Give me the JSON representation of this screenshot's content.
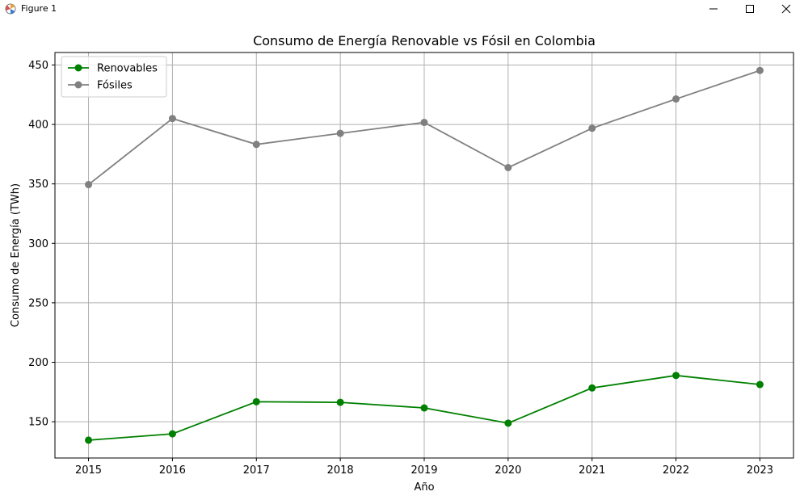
{
  "window": {
    "title": "Figure 1"
  },
  "chart_data": {
    "type": "line",
    "title": "Consumo de Energía Renovable vs Fósil en Colombia",
    "xlabel": "Año",
    "ylabel": "Consumo de Energía (TWh)",
    "x": [
      2015,
      2016,
      2017,
      2018,
      2019,
      2020,
      2021,
      2022,
      2023
    ],
    "xlim": [
      2014.6,
      2023.4
    ],
    "ylim": [
      119.5,
      460.5
    ],
    "yticks": [
      150,
      200,
      250,
      300,
      350,
      400,
      450
    ],
    "grid": true,
    "legend_position": "top-left",
    "series": [
      {
        "name": "Renovables",
        "color": "#008000",
        "marker": "circle",
        "values": [
          134.5,
          139.8,
          166.8,
          166.3,
          161.6,
          148.8,
          178.4,
          188.9,
          181.3
        ]
      },
      {
        "name": "Fósiles",
        "color": "#808080",
        "marker": "circle",
        "values": [
          349.4,
          405.0,
          383.2,
          392.5,
          401.7,
          363.7,
          396.8,
          421.4,
          445.4
        ]
      }
    ]
  }
}
